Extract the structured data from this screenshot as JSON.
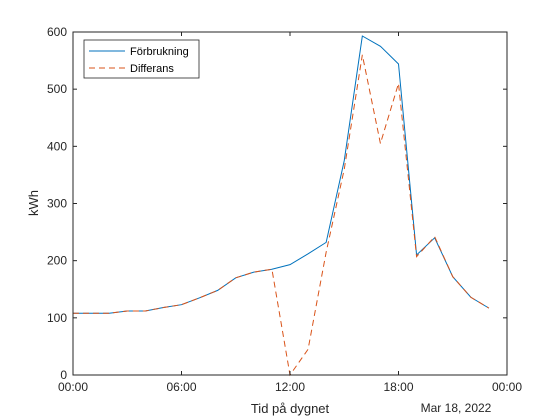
{
  "chart_data": {
    "type": "line",
    "xlabel": "Tid på dygnet",
    "ylabel": "kWh",
    "date_label": "Mar 18, 2022",
    "xlim": [
      0,
      24
    ],
    "ylim": [
      0,
      600
    ],
    "x_ticks": [
      0,
      6,
      12,
      18,
      24
    ],
    "x_tick_labels": [
      "00:00",
      "06:00",
      "12:00",
      "18:00",
      "00:00"
    ],
    "y_ticks": [
      0,
      100,
      200,
      300,
      400,
      500,
      600
    ],
    "y_tick_labels": [
      "0",
      "100",
      "200",
      "300",
      "400",
      "500",
      "600"
    ],
    "grid": false,
    "legend_position": "top-left",
    "x": [
      0,
      1,
      2,
      3,
      4,
      5,
      6,
      7,
      8,
      9,
      10,
      11,
      12,
      13,
      14,
      15,
      16,
      17,
      18,
      19,
      20,
      21,
      22,
      23
    ],
    "series": [
      {
        "name": "Förbrukning",
        "color": "#0072BD",
        "style": "solid",
        "values": [
          108,
          108,
          108,
          112,
          112,
          118,
          123,
          135,
          148,
          170,
          180,
          185,
          193,
          212,
          232,
          375,
          593,
          575,
          544,
          210,
          240,
          172,
          136,
          117
        ]
      },
      {
        "name": "Differans",
        "color": "#D95319",
        "style": "dashed",
        "values": [
          108,
          108,
          108,
          112,
          112,
          118,
          123,
          135,
          148,
          170,
          180,
          185,
          0,
          45,
          215,
          360,
          560,
          405,
          510,
          207,
          242,
          172,
          136,
          117
        ]
      }
    ]
  }
}
